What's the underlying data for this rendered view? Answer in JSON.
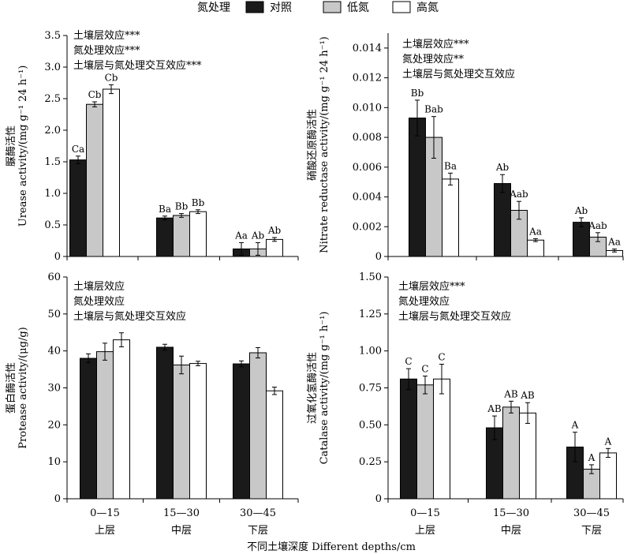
{
  "legend": {
    "title": "氮处理",
    "items": [
      {
        "label": "对照",
        "color": "#1a1a1a"
      },
      {
        "label": "低氮",
        "color": "#c8c8c8"
      },
      {
        "label": "高氮",
        "color": "#ffffff"
      }
    ]
  },
  "x_categories": [
    {
      "range": "0—15",
      "layer": "上层"
    },
    {
      "range": "15—30",
      "layer": "中层"
    },
    {
      "range": "30—45",
      "layer": "下层"
    }
  ],
  "x_title": "不同土壤深度 Different depths/cm",
  "colors": {
    "control": "#1a1a1a",
    "low": "#c8c8c8",
    "high": "#ffffff",
    "axis": "#000000"
  },
  "chart_data": [
    {
      "type": "bar",
      "ylabel_cn": "脲酶活性",
      "ylabel_en": "Urease activity/(mg g⁻¹ 24 h⁻¹)",
      "ylim": [
        0,
        3.5
      ],
      "yticks": [
        "0",
        "0.5",
        "1.0",
        "1.5",
        "2.0",
        "2.5",
        "3.0",
        "3.5"
      ],
      "annotations": [
        "土壤层效应***",
        "氮处理效应***",
        "土壤层与氮处理交互效应***"
      ],
      "categories": [
        "0—15",
        "15—30",
        "30—45"
      ],
      "series": [
        {
          "name": "对照",
          "values": [
            1.53,
            0.61,
            0.12
          ],
          "errors": [
            0.06,
            0.03,
            0.1
          ],
          "labels": [
            "Ca",
            "Ba",
            "Aa"
          ]
        },
        {
          "name": "低氮",
          "values": [
            2.41,
            0.65,
            0.12
          ],
          "errors": [
            0.04,
            0.03,
            0.1
          ],
          "labels": [
            "Cb",
            "Bb",
            "Ab"
          ]
        },
        {
          "name": "高氮",
          "values": [
            2.65,
            0.71,
            0.27
          ],
          "errors": [
            0.07,
            0.03,
            0.03
          ],
          "labels": [
            "Cb",
            "Bb",
            "Ab"
          ]
        }
      ]
    },
    {
      "type": "bar",
      "ylabel_cn": "硝酸还原酶活性",
      "ylabel_en": "Nitrate reductase activity/(mg g⁻¹ 24 h⁻¹)",
      "ylim": [
        0,
        0.015
      ],
      "yticks": [
        "0",
        "0.002",
        "0.004",
        "0.006",
        "0.008",
        "0.010",
        "0.012",
        "0.014"
      ],
      "annotations": [
        "土壤层效应***",
        "氮处理效应**",
        "土壤层与氮处理交互效应"
      ],
      "categories": [
        "0—15",
        "15—30",
        "30—45"
      ],
      "series": [
        {
          "name": "对照",
          "values": [
            0.0093,
            0.0049,
            0.0023
          ],
          "errors": [
            0.0012,
            0.0006,
            0.0003
          ],
          "labels": [
            "Bb",
            "Ab",
            "Ab"
          ]
        },
        {
          "name": "低氮",
          "values": [
            0.008,
            0.0031,
            0.0013
          ],
          "errors": [
            0.0014,
            0.0006,
            0.0003
          ],
          "labels": [
            "Bab",
            "Aab",
            "Aab"
          ]
        },
        {
          "name": "高氮",
          "values": [
            0.0052,
            0.0011,
            0.0004
          ],
          "errors": [
            0.0004,
            0.0001,
            0.0001
          ],
          "labels": [
            "Ba",
            "Aa",
            "Aa"
          ]
        }
      ]
    },
    {
      "type": "bar",
      "ylabel_cn": "蛋白酶活性",
      "ylabel_en": "Protease activity/(μg/g)",
      "ylim": [
        0,
        60
      ],
      "yticks": [
        "0",
        "10",
        "20",
        "30",
        "40",
        "50",
        "60"
      ],
      "annotations": [
        "土壤层效应",
        "氮处理效应",
        "土壤层与氮处理交互效应"
      ],
      "categories": [
        "0—15",
        "15—30",
        "30—45"
      ],
      "series": [
        {
          "name": "对照",
          "values": [
            38.0,
            41.0,
            36.5
          ],
          "errors": [
            1.2,
            0.8,
            0.8
          ],
          "labels": [
            "",
            "",
            ""
          ]
        },
        {
          "name": "低氮",
          "values": [
            39.8,
            36.2,
            39.5
          ],
          "errors": [
            2.3,
            2.4,
            1.4
          ],
          "labels": [
            "",
            "",
            ""
          ]
        },
        {
          "name": "高氮",
          "values": [
            43.0,
            36.6,
            29.2
          ],
          "errors": [
            1.9,
            0.6,
            1.0
          ],
          "labels": [
            "",
            "",
            ""
          ]
        }
      ]
    },
    {
      "type": "bar",
      "ylabel_cn": "过氧化氢酶活性",
      "ylabel_en": "Catalase activity/(mg g⁻¹ h⁻¹)",
      "ylim": [
        0,
        1.5
      ],
      "yticks": [
        "0",
        "0.25",
        "0.50",
        "0.75",
        "1.00",
        "1.25",
        "1.50"
      ],
      "annotations": [
        "土壤层效应***",
        "氮处理效应",
        "土壤层与氮处理交互效应"
      ],
      "categories": [
        "0—15",
        "15—30",
        "30—45"
      ],
      "series": [
        {
          "name": "对照",
          "values": [
            0.81,
            0.48,
            0.35
          ],
          "errors": [
            0.07,
            0.08,
            0.1
          ],
          "labels": [
            "C",
            "AB",
            "A"
          ]
        },
        {
          "name": "低氮",
          "values": [
            0.77,
            0.62,
            0.2
          ],
          "errors": [
            0.06,
            0.04,
            0.03
          ],
          "labels": [
            "C",
            "AB",
            "A"
          ]
        },
        {
          "name": "高氮",
          "values": [
            0.81,
            0.58,
            0.31
          ],
          "errors": [
            0.1,
            0.07,
            0.03
          ],
          "labels": [
            "C",
            "AB",
            "A"
          ]
        }
      ]
    }
  ]
}
